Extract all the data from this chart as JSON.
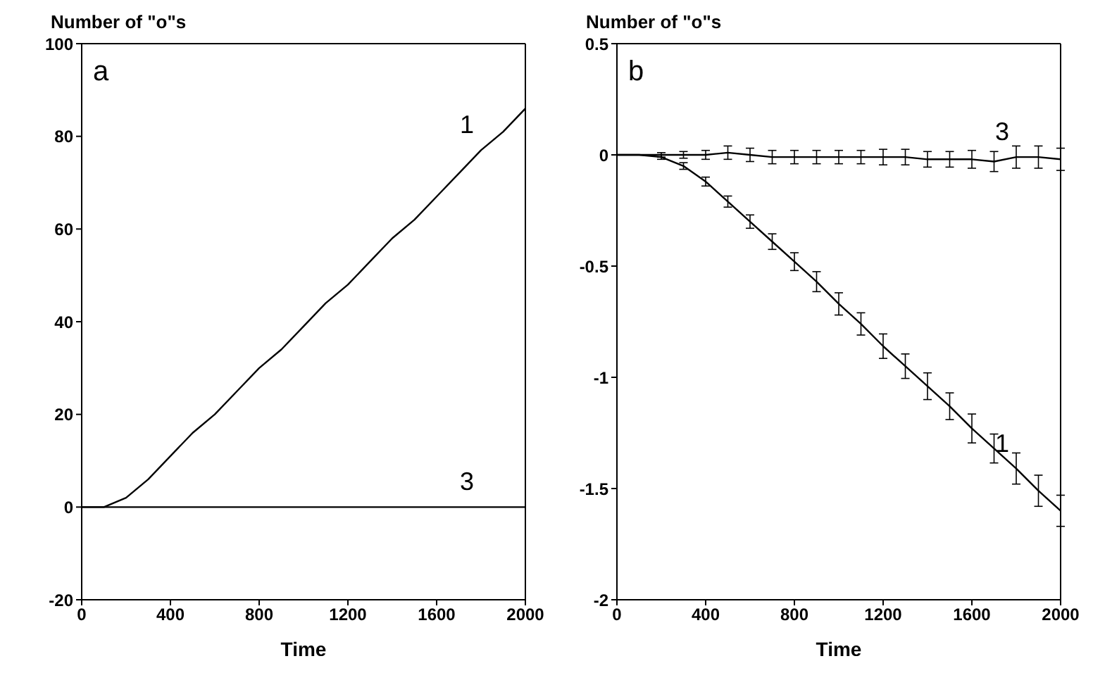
{
  "chart_data": [
    {
      "type": "line",
      "ylabel": "Number of \"o\"s",
      "xlabel": "Time",
      "annotations": [
        "a"
      ],
      "x": [
        0,
        100,
        200,
        300,
        400,
        500,
        600,
        700,
        800,
        900,
        1000,
        1100,
        1200,
        1300,
        1400,
        1500,
        1600,
        1700,
        1800,
        1900,
        2000
      ],
      "xlim": [
        0,
        2000
      ],
      "xticks": [
        0,
        400,
        800,
        1200,
        1600,
        2000
      ],
      "ylim": [
        -20,
        100
      ],
      "yticks": [
        -20,
        0,
        20,
        40,
        60,
        80,
        100
      ],
      "marker": "none",
      "line_style": "solid",
      "series": [
        {
          "name": "1",
          "color": "#000000",
          "values": [
            0,
            0,
            2,
            6,
            11,
            16,
            20,
            25,
            30,
            34,
            39,
            44,
            48,
            53,
            58,
            62,
            67,
            72,
            77,
            81,
            86
          ]
        },
        {
          "name": "3",
          "color": "#000000",
          "values": [
            0,
            0,
            0,
            0,
            0,
            0,
            0,
            0,
            0,
            0,
            0,
            0,
            0,
            0,
            0,
            0,
            0,
            0,
            0,
            0,
            0
          ]
        }
      ]
    },
    {
      "type": "line",
      "ylabel": "Number of \"o\"s",
      "xlabel": "Time",
      "annotations": [
        "b"
      ],
      "x": [
        0,
        100,
        200,
        300,
        400,
        500,
        600,
        700,
        800,
        900,
        1000,
        1100,
        1200,
        1300,
        1400,
        1500,
        1600,
        1700,
        1800,
        1900,
        2000
      ],
      "xlim": [
        0,
        2000
      ],
      "xticks": [
        0,
        400,
        800,
        1200,
        1600,
        2000
      ],
      "ylim": [
        -2,
        0.5
      ],
      "yticks": [
        -2,
        -1.5,
        -1,
        -0.5,
        0,
        0.5
      ],
      "marker": "none",
      "line_style": "solid",
      "series": [
        {
          "name": "1",
          "color": "#000000",
          "values": [
            0,
            0,
            -0.01,
            -0.05,
            -0.12,
            -0.21,
            -0.3,
            -0.39,
            -0.48,
            -0.57,
            -0.67,
            -0.76,
            -0.86,
            -0.95,
            -1.04,
            -1.13,
            -1.23,
            -1.32,
            -1.41,
            -1.51,
            -1.6
          ],
          "errors": [
            null,
            null,
            0.01,
            0.015,
            0.02,
            0.025,
            0.03,
            0.035,
            0.04,
            0.045,
            0.05,
            0.05,
            0.055,
            0.055,
            0.06,
            0.06,
            0.065,
            0.065,
            0.07,
            0.07,
            0.07
          ]
        },
        {
          "name": "3",
          "color": "#000000",
          "values": [
            0,
            0,
            0,
            0,
            0,
            0.01,
            0,
            -0.01,
            -0.01,
            -0.01,
            -0.01,
            -0.01,
            -0.01,
            -0.01,
            -0.02,
            -0.02,
            -0.02,
            -0.03,
            -0.01,
            -0.01,
            -0.02
          ],
          "errors": [
            null,
            null,
            0.01,
            0.015,
            0.02,
            0.03,
            0.03,
            0.03,
            0.03,
            0.03,
            0.03,
            0.03,
            0.035,
            0.035,
            0.035,
            0.035,
            0.04,
            0.045,
            0.05,
            0.05,
            0.05
          ]
        }
      ]
    }
  ]
}
